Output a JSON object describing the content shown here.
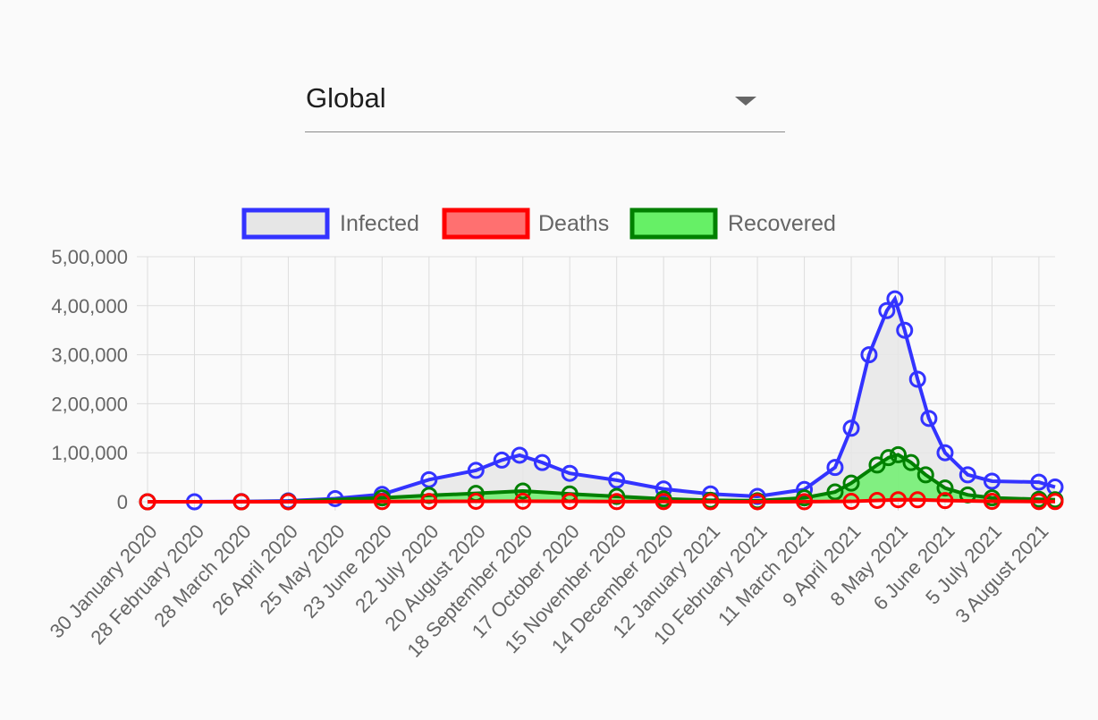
{
  "region_select": {
    "value": "Global"
  },
  "legend": [
    {
      "label": "Infected",
      "stroke": "#3333ff",
      "fill": "#e6e6e6"
    },
    {
      "label": "Deaths",
      "stroke": "#ff0000",
      "fill": "#ff7070"
    },
    {
      "label": "Recovered",
      "stroke": "#008000",
      "fill": "#66f066"
    }
  ],
  "chart_data": {
    "type": "area",
    "title": "",
    "xlabel": "",
    "ylabel": "",
    "grid": true,
    "legend_position": "top",
    "x_start": "30 January 2020",
    "x_end": "13 August 2021",
    "x_tick_labels": [
      "30 January 2020",
      "28 February 2020",
      "28 March 2020",
      "26 April 2020",
      "25 May 2020",
      "23 June 2020",
      "22 July 2020",
      "20 August 2020",
      "18 September 2020",
      "17 October 2020",
      "15 November 2020",
      "14 December 2020",
      "12 January 2021",
      "10 February 2021",
      "11 March 2021",
      "9 April 2021",
      "8 May 2021",
      "6 June 2021",
      "5 July 2021",
      "3 August 2021"
    ],
    "y_ticks": [
      0,
      100000,
      200000,
      300000,
      400000,
      500000
    ],
    "y_tick_labels": [
      "0",
      "1,00,000",
      "2,00,000",
      "3,00,000",
      "4,00,000",
      "5,00,000"
    ],
    "ylim": [
      0,
      500000
    ],
    "series": [
      {
        "name": "Infected",
        "color": "#3333ff",
        "points": [
          [
            "30 January 2020",
            0
          ],
          [
            "28 February 2020",
            50
          ],
          [
            "28 March 2020",
            500
          ],
          [
            "26 April 2020",
            1800
          ],
          [
            "25 May 2020",
            6500
          ],
          [
            "23 June 2020",
            15000
          ],
          [
            "22 July 2020",
            45000
          ],
          [
            "20 August 2020",
            64000
          ],
          [
            "5 September 2020",
            85000
          ],
          [
            "16 September 2020",
            95000
          ],
          [
            "30 September 2020",
            80000
          ],
          [
            "17 October 2020",
            58000
          ],
          [
            "15 November 2020",
            44000
          ],
          [
            "14 December 2020",
            26000
          ],
          [
            "12 January 2021",
            16000
          ],
          [
            "10 February 2021",
            11000
          ],
          [
            "11 March 2021",
            25000
          ],
          [
            "30 March 2021",
            70000
          ],
          [
            "9 April 2021",
            150000
          ],
          [
            "20 April 2021",
            300000
          ],
          [
            "1 May 2021",
            390000
          ],
          [
            "6 May 2021",
            414000
          ],
          [
            "12 May 2021",
            350000
          ],
          [
            "20 May 2021",
            250000
          ],
          [
            "27 May 2021",
            170000
          ],
          [
            "6 June 2021",
            100000
          ],
          [
            "20 June 2021",
            55000
          ],
          [
            "5 July 2021",
            42000
          ],
          [
            "3 August 2021",
            40000
          ],
          [
            "13 August 2021",
            30000
          ]
        ]
      },
      {
        "name": "Deaths",
        "color": "#ff0000",
        "points": [
          [
            "30 January 2020",
            0
          ],
          [
            "28 March 2020",
            20
          ],
          [
            "26 April 2020",
            60
          ],
          [
            "23 June 2020",
            400
          ],
          [
            "22 July 2020",
            750
          ],
          [
            "20 August 2020",
            1000
          ],
          [
            "18 September 2020",
            1200
          ],
          [
            "17 October 2020",
            800
          ],
          [
            "15 November 2020",
            500
          ],
          [
            "14 December 2020",
            400
          ],
          [
            "12 January 2021",
            200
          ],
          [
            "10 February 2021",
            100
          ],
          [
            "11 March 2021",
            200
          ],
          [
            "9 April 2021",
            800
          ],
          [
            "25 April 2021",
            2800
          ],
          [
            "8 May 2021",
            4200
          ],
          [
            "20 May 2021",
            4000
          ],
          [
            "6 June 2021",
            2500
          ],
          [
            "5 July 2021",
            900
          ],
          [
            "3 August 2021",
            500
          ],
          [
            "13 August 2021",
            400
          ]
        ]
      },
      {
        "name": "Recovered",
        "color": "#008000",
        "points": [
          [
            "30 January 2020",
            0
          ],
          [
            "28 March 2020",
            50
          ],
          [
            "26 April 2020",
            500
          ],
          [
            "23 June 2020",
            8000
          ],
          [
            "22 July 2020",
            13000
          ],
          [
            "20 August 2020",
            17000
          ],
          [
            "18 September 2020",
            22000
          ],
          [
            "17 October 2020",
            16000
          ],
          [
            "15 November 2020",
            11000
          ],
          [
            "14 December 2020",
            6000
          ],
          [
            "12 January 2021",
            3000
          ],
          [
            "10 February 2021",
            2000
          ],
          [
            "11 March 2021",
            8000
          ],
          [
            "30 March 2021",
            20000
          ],
          [
            "9 April 2021",
            38000
          ],
          [
            "25 April 2021",
            75000
          ],
          [
            "2 May 2021",
            90000
          ],
          [
            "8 May 2021",
            96000
          ],
          [
            "16 May 2021",
            80000
          ],
          [
            "25 May 2021",
            55000
          ],
          [
            "6 June 2021",
            28000
          ],
          [
            "20 June 2021",
            14000
          ],
          [
            "5 July 2021",
            8000
          ],
          [
            "3 August 2021",
            5000
          ],
          [
            "13 August 2021",
            4000
          ]
        ]
      }
    ]
  }
}
